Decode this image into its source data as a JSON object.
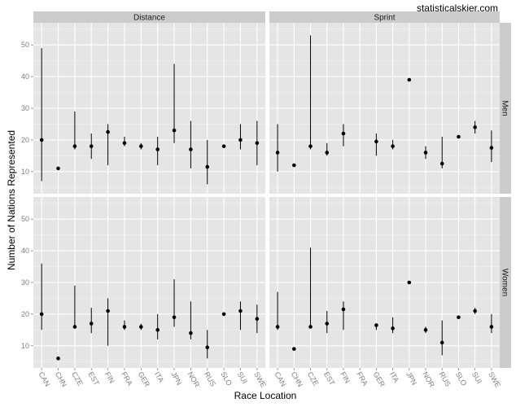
{
  "watermark": "statisticalskier.com",
  "chart_data": {
    "type": "scatter",
    "title": "",
    "xlabel": "Race Location",
    "ylabel": "Number of Nations Represented",
    "ylim": [
      3,
      57
    ],
    "yticks": [
      10,
      20,
      30,
      40,
      50
    ],
    "grid": true,
    "legend": "none",
    "categories": [
      "CAN",
      "CHN",
      "CZE",
      "EST",
      "FIN",
      "FRA",
      "GER",
      "ITA",
      "JPN",
      "NOR",
      "RUS",
      "SLO",
      "SUI",
      "SWE"
    ],
    "col_facets": [
      "Distance",
      "Sprint"
    ],
    "row_facets": [
      "Men",
      "Women"
    ],
    "panels": [
      {
        "col": "Distance",
        "row": "Men",
        "points": [
          {
            "x": "CAN",
            "y": 20,
            "ymin": 7,
            "ymax": 49
          },
          {
            "x": "CHN",
            "y": 11,
            "ymin": 11,
            "ymax": 11
          },
          {
            "x": "CZE",
            "y": 18,
            "ymin": 17,
            "ymax": 29
          },
          {
            "x": "EST",
            "y": 18,
            "ymin": 14,
            "ymax": 22
          },
          {
            "x": "FIN",
            "y": 22.5,
            "ymin": 12,
            "ymax": 25
          },
          {
            "x": "FRA",
            "y": 19,
            "ymin": 18,
            "ymax": 21
          },
          {
            "x": "GER",
            "y": 18,
            "ymin": 17,
            "ymax": 19
          },
          {
            "x": "ITA",
            "y": 17,
            "ymin": 12,
            "ymax": 21
          },
          {
            "x": "JPN",
            "y": 23,
            "ymin": 19,
            "ymax": 44
          },
          {
            "x": "NOR",
            "y": 17,
            "ymin": 11,
            "ymax": 26
          },
          {
            "x": "RUS",
            "y": 11.5,
            "ymin": 6,
            "ymax": 20
          },
          {
            "x": "SLO",
            "y": 18,
            "ymin": 18,
            "ymax": 18
          },
          {
            "x": "SUI",
            "y": 20,
            "ymin": 17,
            "ymax": 25
          },
          {
            "x": "SWE",
            "y": 19,
            "ymin": 12,
            "ymax": 26
          }
        ]
      },
      {
        "col": "Sprint",
        "row": "Men",
        "points": [
          {
            "x": "CAN",
            "y": 16,
            "ymin": 10,
            "ymax": 25
          },
          {
            "x": "CHN",
            "y": 12,
            "ymin": 12,
            "ymax": 12
          },
          {
            "x": "CZE",
            "y": 18,
            "ymin": 17,
            "ymax": 53
          },
          {
            "x": "EST",
            "y": 16,
            "ymin": 15,
            "ymax": 19
          },
          {
            "x": "FIN",
            "y": 22,
            "ymin": 18,
            "ymax": 25
          },
          {
            "x": "GER",
            "y": 19.5,
            "ymin": 15,
            "ymax": 22
          },
          {
            "x": "ITA",
            "y": 18,
            "ymin": 17,
            "ymax": 20
          },
          {
            "x": "JPN",
            "y": 39,
            "ymin": 39,
            "ymax": 39
          },
          {
            "x": "NOR",
            "y": 16,
            "ymin": 14,
            "ymax": 18
          },
          {
            "x": "RUS",
            "y": 12.5,
            "ymin": 11,
            "ymax": 21
          },
          {
            "x": "SLO",
            "y": 21,
            "ymin": 21,
            "ymax": 21
          },
          {
            "x": "SUI",
            "y": 24,
            "ymin": 22,
            "ymax": 26
          },
          {
            "x": "SWE",
            "y": 17.5,
            "ymin": 13,
            "ymax": 23
          }
        ]
      },
      {
        "col": "Distance",
        "row": "Women",
        "points": [
          {
            "x": "CAN",
            "y": 20,
            "ymin": 15,
            "ymax": 36
          },
          {
            "x": "CHN",
            "y": 6,
            "ymin": 6,
            "ymax": 6
          },
          {
            "x": "CZE",
            "y": 16,
            "ymin": 16,
            "ymax": 29
          },
          {
            "x": "EST",
            "y": 17,
            "ymin": 14,
            "ymax": 22
          },
          {
            "x": "FIN",
            "y": 21,
            "ymin": 10,
            "ymax": 25
          },
          {
            "x": "FRA",
            "y": 16,
            "ymin": 15,
            "ymax": 18
          },
          {
            "x": "GER",
            "y": 16,
            "ymin": 15,
            "ymax": 17
          },
          {
            "x": "ITA",
            "y": 15,
            "ymin": 12,
            "ymax": 20
          },
          {
            "x": "JPN",
            "y": 19,
            "ymin": 16,
            "ymax": 31
          },
          {
            "x": "NOR",
            "y": 14,
            "ymin": 12,
            "ymax": 24
          },
          {
            "x": "RUS",
            "y": 9.5,
            "ymin": 6,
            "ymax": 15
          },
          {
            "x": "SLO",
            "y": 20,
            "ymin": 20,
            "ymax": 20
          },
          {
            "x": "SUI",
            "y": 21,
            "ymin": 15,
            "ymax": 24
          },
          {
            "x": "SWE",
            "y": 18.5,
            "ymin": 14,
            "ymax": 23
          }
        ]
      },
      {
        "col": "Sprint",
        "row": "Women",
        "points": [
          {
            "x": "CAN",
            "y": 16,
            "ymin": 15,
            "ymax": 27
          },
          {
            "x": "CHN",
            "y": 9,
            "ymin": 9,
            "ymax": 9
          },
          {
            "x": "CZE",
            "y": 16,
            "ymin": 16,
            "ymax": 41
          },
          {
            "x": "EST",
            "y": 17,
            "ymin": 14,
            "ymax": 21
          },
          {
            "x": "FIN",
            "y": 21.5,
            "ymin": 15,
            "ymax": 24
          },
          {
            "x": "GER",
            "y": 16.5,
            "ymin": 15,
            "ymax": 17
          },
          {
            "x": "ITA",
            "y": 15.5,
            "ymin": 14,
            "ymax": 19
          },
          {
            "x": "JPN",
            "y": 30,
            "ymin": 30,
            "ymax": 30
          },
          {
            "x": "NOR",
            "y": 15,
            "ymin": 14,
            "ymax": 16
          },
          {
            "x": "RUS",
            "y": 11,
            "ymin": 7,
            "ymax": 18
          },
          {
            "x": "SLO",
            "y": 19,
            "ymin": 19,
            "ymax": 19
          },
          {
            "x": "SUI",
            "y": 21,
            "ymin": 20,
            "ymax": 22
          },
          {
            "x": "SWE",
            "y": 16,
            "ymin": 14,
            "ymax": 20
          }
        ]
      }
    ]
  }
}
